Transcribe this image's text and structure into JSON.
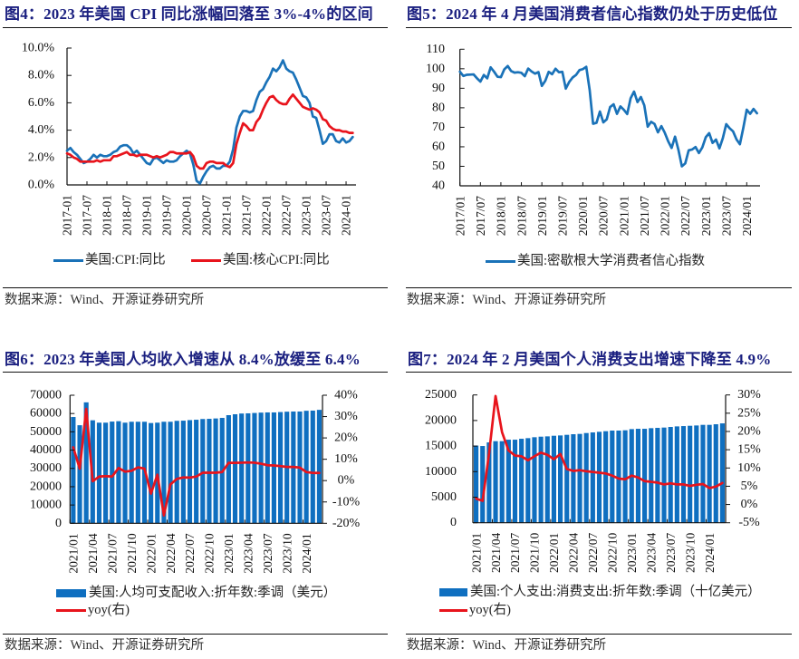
{
  "theme": {
    "title_color": "#1b2080",
    "source_color": "#333333"
  },
  "chart_data": [
    {
      "type": "line",
      "title": "图4：2023 年美国 CPI 同比涨幅回落至 3%-4%的区间",
      "source_note": "数据来源：Wind、开源证券研究所",
      "xlabel": "",
      "ylabel": "",
      "ylim": [
        0,
        10
      ],
      "y_tick_values": [
        0,
        2,
        4,
        6,
        8,
        10
      ],
      "y_ticks": [
        "0.0%",
        "2.0%",
        "4.0%",
        "6.0%",
        "8.0%",
        "10.0%"
      ],
      "x_ticks": [
        "2017-01",
        "2017-07",
        "2018-01",
        "2018-07",
        "2019-01",
        "2019-07",
        "2020-01",
        "2020-07",
        "2021-01",
        "2021-07",
        "2022-01",
        "2022-07",
        "2023-01",
        "2023-07",
        "2024-01"
      ],
      "grid": false,
      "legend_position": "bottom",
      "x": [
        "2017-01",
        "2017-02",
        "2017-03",
        "2017-04",
        "2017-05",
        "2017-06",
        "2017-07",
        "2017-08",
        "2017-09",
        "2017-10",
        "2017-11",
        "2017-12",
        "2018-01",
        "2018-02",
        "2018-03",
        "2018-04",
        "2018-05",
        "2018-06",
        "2018-07",
        "2018-08",
        "2018-09",
        "2018-10",
        "2018-11",
        "2018-12",
        "2019-01",
        "2019-02",
        "2019-03",
        "2019-04",
        "2019-05",
        "2019-06",
        "2019-07",
        "2019-08",
        "2019-09",
        "2019-10",
        "2019-11",
        "2019-12",
        "2020-01",
        "2020-02",
        "2020-03",
        "2020-04",
        "2020-05",
        "2020-06",
        "2020-07",
        "2020-08",
        "2020-09",
        "2020-10",
        "2020-11",
        "2020-12",
        "2021-01",
        "2021-02",
        "2021-03",
        "2021-04",
        "2021-05",
        "2021-06",
        "2021-07",
        "2021-08",
        "2021-09",
        "2021-10",
        "2021-11",
        "2021-12",
        "2022-01",
        "2022-02",
        "2022-03",
        "2022-04",
        "2022-05",
        "2022-06",
        "2022-07",
        "2022-08",
        "2022-09",
        "2022-10",
        "2022-11",
        "2022-12",
        "2023-01",
        "2023-02",
        "2023-03",
        "2023-04",
        "2023-05",
        "2023-06",
        "2023-07",
        "2023-08",
        "2023-09",
        "2023-10",
        "2023-11",
        "2023-12",
        "2024-01",
        "2024-02",
        "2024-03"
      ],
      "series": [
        {
          "name": "美国:CPI:同比",
          "kind": "line",
          "axis": "left",
          "color": "#1a72b8",
          "values": [
            2.5,
            2.7,
            2.4,
            2.2,
            1.9,
            1.6,
            1.7,
            1.9,
            2.2,
            2.0,
            2.2,
            2.1,
            2.1,
            2.2,
            2.4,
            2.5,
            2.8,
            2.9,
            2.9,
            2.7,
            2.3,
            2.5,
            2.2,
            1.9,
            1.6,
            1.5,
            1.9,
            2.0,
            1.8,
            1.6,
            1.8,
            1.7,
            1.7,
            1.8,
            2.1,
            2.3,
            2.5,
            2.3,
            1.5,
            0.3,
            0.1,
            0.6,
            1.0,
            1.3,
            1.4,
            1.2,
            1.2,
            1.4,
            1.4,
            1.7,
            2.6,
            4.2,
            5.0,
            5.4,
            5.4,
            5.3,
            5.4,
            6.2,
            6.8,
            7.0,
            7.5,
            7.9,
            8.5,
            8.3,
            8.6,
            9.1,
            8.5,
            8.3,
            8.2,
            7.7,
            7.1,
            6.5,
            6.4,
            6.0,
            5.0,
            4.9,
            4.0,
            3.0,
            3.2,
            3.7,
            3.7,
            3.2,
            3.1,
            3.4,
            3.1,
            3.2,
            3.5
          ]
        },
        {
          "name": "美国:核心CPI:同比",
          "kind": "line",
          "axis": "left",
          "color": "#e8141c",
          "values": [
            2.3,
            2.2,
            2.0,
            1.9,
            1.7,
            1.7,
            1.7,
            1.7,
            1.7,
            1.8,
            1.7,
            1.8,
            1.8,
            1.8,
            2.1,
            2.1,
            2.2,
            2.3,
            2.4,
            2.2,
            2.2,
            2.1,
            2.2,
            2.2,
            2.2,
            2.1,
            2.0,
            2.1,
            2.0,
            2.1,
            2.2,
            2.4,
            2.4,
            2.3,
            2.3,
            2.3,
            2.3,
            2.4,
            2.1,
            1.4,
            1.2,
            1.2,
            1.6,
            1.7,
            1.7,
            1.6,
            1.6,
            1.6,
            1.4,
            1.3,
            1.6,
            3.0,
            3.8,
            4.5,
            4.3,
            4.0,
            4.0,
            4.6,
            4.9,
            5.5,
            6.0,
            6.4,
            6.5,
            6.2,
            6.0,
            5.9,
            5.9,
            6.3,
            6.6,
            6.3,
            6.0,
            5.7,
            5.6,
            5.5,
            5.6,
            5.5,
            5.3,
            4.8,
            4.7,
            4.3,
            4.1,
            4.0,
            4.0,
            3.9,
            3.9,
            3.8,
            3.8
          ]
        }
      ]
    },
    {
      "type": "line",
      "title": "图5：2024 年 4 月美国消费者信心指数仍处于历史低位",
      "source_note": "数据来源：Wind、开源证券研究所",
      "xlabel": "",
      "ylabel": "",
      "ylim": [
        40,
        110
      ],
      "y_tick_values": [
        40,
        50,
        60,
        70,
        80,
        90,
        100,
        110
      ],
      "y_ticks": [
        "40",
        "50",
        "60",
        "70",
        "80",
        "90",
        "100",
        "110"
      ],
      "x_ticks": [
        "2017/01",
        "2017/07",
        "2018/01",
        "2018/07",
        "2019/01",
        "2019/07",
        "2020/01",
        "2020/07",
        "2021/01",
        "2021/07",
        "2022/01",
        "2022/07",
        "2023/01",
        "2023/07",
        "2024/01"
      ],
      "grid": false,
      "legend_position": "bottom",
      "x": [
        "2017/01",
        "2017/02",
        "2017/03",
        "2017/04",
        "2017/05",
        "2017/06",
        "2017/07",
        "2017/08",
        "2017/09",
        "2017/10",
        "2017/11",
        "2017/12",
        "2018/01",
        "2018/02",
        "2018/03",
        "2018/04",
        "2018/05",
        "2018/06",
        "2018/07",
        "2018/08",
        "2018/09",
        "2018/10",
        "2018/11",
        "2018/12",
        "2019/01",
        "2019/02",
        "2019/03",
        "2019/04",
        "2019/05",
        "2019/06",
        "2019/07",
        "2019/08",
        "2019/09",
        "2019/10",
        "2019/11",
        "2019/12",
        "2020/01",
        "2020/02",
        "2020/03",
        "2020/04",
        "2020/05",
        "2020/06",
        "2020/07",
        "2020/08",
        "2020/09",
        "2020/10",
        "2020/11",
        "2020/12",
        "2021/01",
        "2021/02",
        "2021/03",
        "2021/04",
        "2021/05",
        "2021/06",
        "2021/07",
        "2021/08",
        "2021/09",
        "2021/10",
        "2021/11",
        "2021/12",
        "2022/01",
        "2022/02",
        "2022/03",
        "2022/04",
        "2022/05",
        "2022/06",
        "2022/07",
        "2022/08",
        "2022/09",
        "2022/10",
        "2022/11",
        "2022/12",
        "2023/01",
        "2023/02",
        "2023/03",
        "2023/04",
        "2023/05",
        "2023/06",
        "2023/07",
        "2023/08",
        "2023/09",
        "2023/10",
        "2023/11",
        "2023/12",
        "2024/01",
        "2024/02",
        "2024/03",
        "2024/04"
      ],
      "series": [
        {
          "name": "美国:密歇根大学消费者信心指数",
          "kind": "line",
          "axis": "left",
          "color": "#1a72b8",
          "values": [
            98.5,
            96.3,
            96.9,
            97.0,
            97.1,
            95.1,
            93.4,
            96.8,
            95.1,
            100.7,
            98.5,
            95.9,
            95.7,
            99.7,
            101.4,
            98.8,
            98.0,
            98.2,
            97.9,
            96.2,
            100.1,
            98.6,
            97.5,
            98.3,
            91.2,
            93.8,
            98.4,
            97.2,
            100.0,
            98.2,
            98.4,
            89.8,
            93.2,
            95.5,
            96.8,
            99.3,
            99.8,
            101.0,
            89.1,
            71.8,
            72.3,
            78.1,
            72.5,
            74.1,
            80.4,
            81.8,
            76.9,
            80.7,
            79.0,
            76.8,
            84.9,
            88.3,
            82.9,
            85.5,
            81.2,
            70.3,
            72.8,
            71.7,
            67.4,
            70.6,
            67.2,
            62.8,
            59.4,
            65.2,
            58.4,
            50.0,
            51.5,
            58.2,
            58.6,
            59.9,
            56.8,
            59.7,
            64.9,
            67.0,
            62.0,
            63.7,
            59.2,
            64.4,
            71.6,
            69.5,
            67.9,
            63.8,
            61.3,
            69.7,
            79.0,
            76.9,
            79.4,
            77.2
          ]
        }
      ]
    },
    {
      "type": "bar",
      "title": "图6：2023 年美国人均收入增速从 8.4%放缓至 6.4%",
      "source_note": "数据来源：Wind、开源证券研究所",
      "xlabel": "",
      "ylabel": "",
      "y2label": "",
      "ylim": [
        0,
        70000
      ],
      "y_tick_values": [
        0,
        10000,
        20000,
        30000,
        40000,
        50000,
        60000,
        70000
      ],
      "y_ticks": [
        "0",
        "10000",
        "20000",
        "30000",
        "40000",
        "50000",
        "60000",
        "70000"
      ],
      "y2lim": [
        -20,
        40
      ],
      "y2_tick_values": [
        -20,
        -10,
        0,
        10,
        20,
        30,
        40
      ],
      "y2_ticks": [
        "-20%",
        "-10%",
        "0%",
        "10%",
        "20%",
        "30%",
        "40%"
      ],
      "x_ticks": [
        "2021/01",
        "2021/04",
        "2021/07",
        "2021/10",
        "2022/01",
        "2022/04",
        "2022/07",
        "2022/10",
        "2023/01",
        "2023/04",
        "2023/07",
        "2023/10",
        "2024/01"
      ],
      "grid": false,
      "legend_position": "bottom-left",
      "x": [
        "2021/01",
        "2021/02",
        "2021/03",
        "2021/04",
        "2021/05",
        "2021/06",
        "2021/07",
        "2021/08",
        "2021/09",
        "2021/10",
        "2021/11",
        "2021/12",
        "2022/01",
        "2022/02",
        "2022/03",
        "2022/04",
        "2022/05",
        "2022/06",
        "2022/07",
        "2022/08",
        "2022/09",
        "2022/10",
        "2022/11",
        "2022/12",
        "2023/01",
        "2023/02",
        "2023/03",
        "2023/04",
        "2023/05",
        "2023/06",
        "2023/07",
        "2023/08",
        "2023/09",
        "2023/10",
        "2023/11",
        "2023/12",
        "2024/01",
        "2024/02",
        "2024/03"
      ],
      "series": [
        {
          "name": "美国:人均可支配收入:折年数:季调（美元）",
          "kind": "bar",
          "axis": "left",
          "color": "#0f6fc0",
          "values": [
            58100,
            53600,
            66100,
            56300,
            55000,
            55000,
            55600,
            55800,
            55000,
            55500,
            55500,
            55500,
            54800,
            55000,
            55500,
            55500,
            56000,
            56100,
            56400,
            56600,
            57000,
            57100,
            57300,
            57600,
            59100,
            59600,
            60000,
            60100,
            60300,
            60500,
            60600,
            60600,
            60800,
            61000,
            61100,
            61100,
            61500,
            61600,
            62000
          ]
        },
        {
          "name": "yoy(右)",
          "kind": "line",
          "axis": "right",
          "color": "#e8141c",
          "values": [
            15.6,
            5.6,
            33.6,
            -0.3,
            1.9,
            2.1,
            1.9,
            5.9,
            4.2,
            4.6,
            6.2,
            5.6,
            -6.1,
            2.8,
            -16.3,
            -1.8,
            0.8,
            1.5,
            1.4,
            1.9,
            3.7,
            3.7,
            3.7,
            4.0,
            8.3,
            8.3,
            8.4,
            8.5,
            8.4,
            7.9,
            7.2,
            7.1,
            6.8,
            6.4,
            6.4,
            6.1,
            4.0,
            3.6,
            3.6
          ]
        }
      ]
    },
    {
      "type": "bar",
      "title": "图7：2024 年 2 月美国个人消费支出增速下降至 4.9%",
      "source_note": "数据来源：Wind、开源证券研究所",
      "xlabel": "",
      "ylabel": "",
      "y2label": "",
      "ylim": [
        0,
        25000
      ],
      "y_tick_values": [
        0,
        5000,
        10000,
        15000,
        20000,
        25000
      ],
      "y_ticks": [
        "0",
        "5000",
        "10000",
        "15000",
        "20000",
        "25000"
      ],
      "y2lim": [
        -5,
        30
      ],
      "y2_tick_values": [
        -5,
        0,
        5,
        10,
        15,
        20,
        25,
        30
      ],
      "y2_ticks": [
        "-5%",
        "0%",
        "5%",
        "10%",
        "15%",
        "20%",
        "25%",
        "30%"
      ],
      "x_ticks": [
        "2021/01",
        "2021/04",
        "2021/07",
        "2021/10",
        "2022/01",
        "2022/04",
        "2022/07",
        "2022/10",
        "2023/01",
        "2023/04",
        "2023/07",
        "2023/10",
        "2024/01"
      ],
      "grid": false,
      "legend_position": "bottom-left",
      "x": [
        "2021/01",
        "2021/02",
        "2021/03",
        "2021/04",
        "2021/05",
        "2021/06",
        "2021/07",
        "2021/08",
        "2021/09",
        "2021/10",
        "2021/11",
        "2021/12",
        "2022/01",
        "2022/02",
        "2022/03",
        "2022/04",
        "2022/05",
        "2022/06",
        "2022/07",
        "2022/08",
        "2022/09",
        "2022/10",
        "2022/11",
        "2022/12",
        "2023/01",
        "2023/02",
        "2023/03",
        "2023/04",
        "2023/05",
        "2023/06",
        "2023/07",
        "2023/08",
        "2023/09",
        "2023/10",
        "2023/11",
        "2023/12",
        "2024/01",
        "2024/02",
        "2024/03"
      ],
      "series": [
        {
          "name": "美国:个人支出:消费支出:折年数:季调（十亿美元）",
          "kind": "bar",
          "axis": "left",
          "color": "#0f6fc0",
          "values": [
            15100,
            15010,
            15720,
            15960,
            15960,
            16250,
            16250,
            16430,
            16550,
            16730,
            16840,
            16900,
            17020,
            17080,
            17200,
            17320,
            17380,
            17550,
            17670,
            17790,
            17910,
            18030,
            18030,
            18090,
            18320,
            18380,
            18380,
            18500,
            18560,
            18620,
            18740,
            18850,
            18910,
            18970,
            19030,
            19150,
            19150,
            19270,
            19440
          ]
        },
        {
          "name": "yoy(右)",
          "kind": "line",
          "axis": "right",
          "color": "#e8141c",
          "values": [
            1.6,
            1.0,
            14.0,
            29.7,
            19.8,
            14.8,
            13.4,
            13.2,
            12.1,
            13.2,
            14.2,
            13.6,
            12.4,
            13.8,
            9.7,
            9.2,
            9.4,
            9.1,
            8.9,
            8.7,
            8.5,
            7.9,
            7.1,
            6.9,
            7.9,
            7.4,
            6.4,
            6.2,
            6.0,
            5.5,
            5.8,
            5.5,
            5.5,
            5.1,
            5.4,
            5.6,
            4.5,
            4.9,
            5.9
          ]
        }
      ]
    }
  ]
}
